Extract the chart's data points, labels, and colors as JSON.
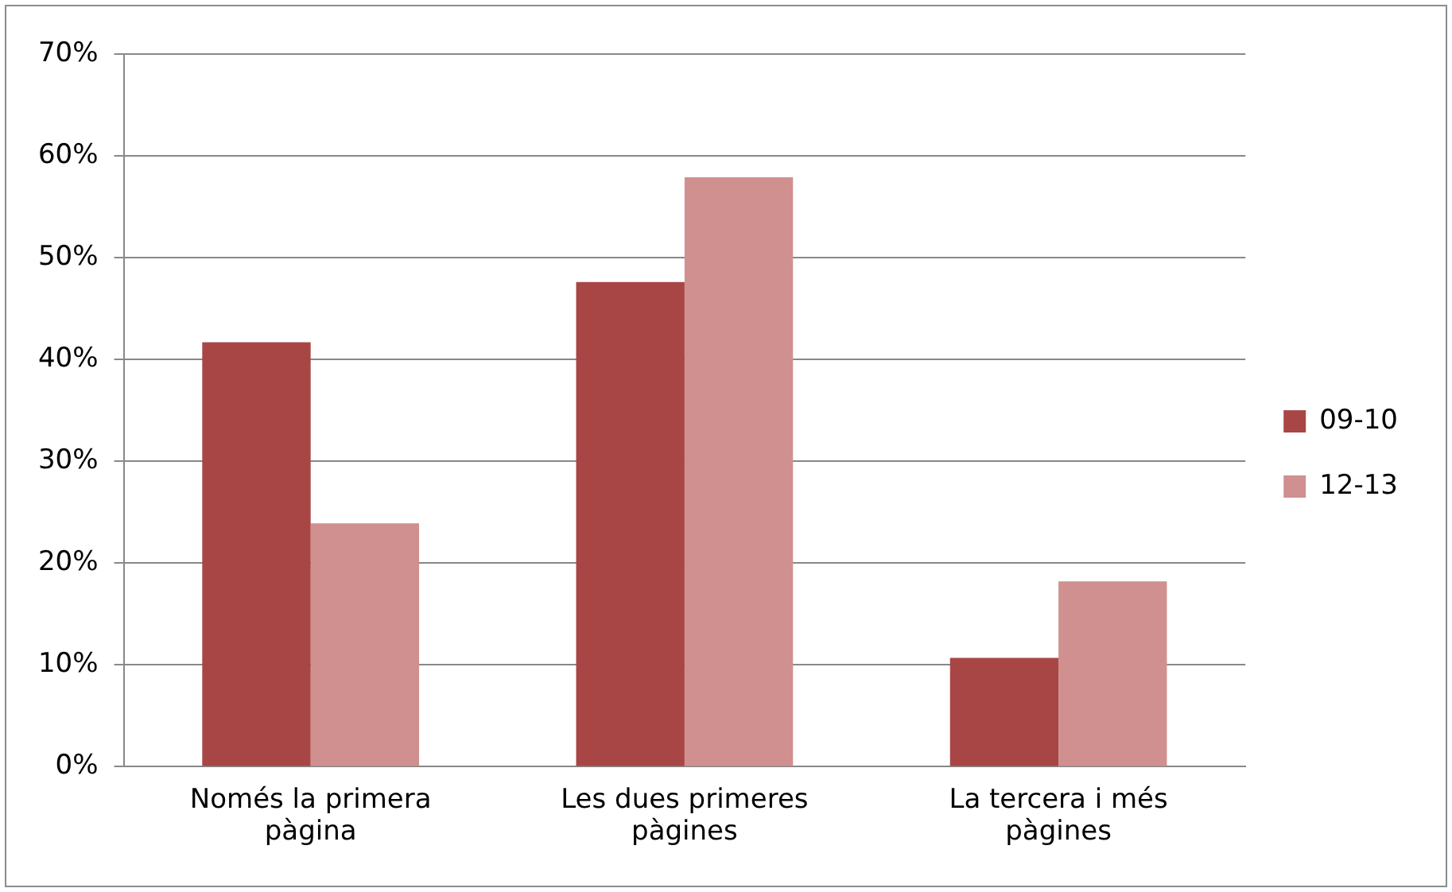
{
  "chart_data": {
    "type": "bar",
    "categories": [
      "Només la primera pàgina",
      "Les dues primeres pàgines",
      "La tercera i més pàgines"
    ],
    "series": [
      {
        "name": "09-10",
        "color": "#a84646",
        "values": [
          41.7,
          47.6,
          10.7
        ]
      },
      {
        "name": "12-13",
        "color": "#d09090",
        "values": [
          23.9,
          57.9,
          18.2
        ]
      }
    ],
    "ylim": [
      0,
      70
    ],
    "yticks": [
      {
        "value": 0,
        "label": "0%"
      },
      {
        "value": 10,
        "label": "10%"
      },
      {
        "value": 20,
        "label": "20%"
      },
      {
        "value": 30,
        "label": "30%"
      },
      {
        "value": 40,
        "label": "40%"
      },
      {
        "value": 50,
        "label": "50%"
      },
      {
        "value": 60,
        "label": "60%"
      },
      {
        "value": 70,
        "label": "70%"
      }
    ],
    "grid": "y",
    "legend": "right"
  }
}
